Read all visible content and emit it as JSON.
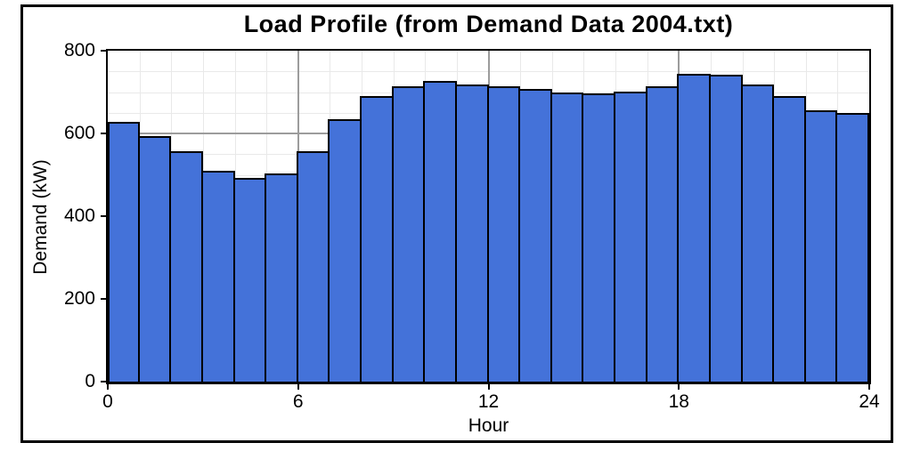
{
  "chart_data": {
    "type": "bar",
    "title": "Load Profile (from Demand Data 2004.txt)",
    "xlabel": "Hour",
    "ylabel": "Demand (kW)",
    "hours": [
      0,
      1,
      2,
      3,
      4,
      5,
      6,
      7,
      8,
      9,
      10,
      11,
      12,
      13,
      14,
      15,
      16,
      17,
      18,
      19,
      20,
      21,
      22,
      23
    ],
    "values": [
      628,
      593,
      558,
      510,
      493,
      504,
      558,
      635,
      690,
      715,
      726,
      719,
      714,
      708,
      700,
      696,
      701,
      713,
      744,
      742,
      718,
      690,
      655,
      650
    ],
    "xlim": [
      0,
      24
    ],
    "ylim": [
      0,
      800
    ],
    "x_major_ticks": [
      0,
      6,
      12,
      18,
      24
    ],
    "y_major_ticks": [
      0,
      200,
      400,
      600,
      800
    ],
    "x_minor_step_hours": 1,
    "y_minor_step_kw": 50,
    "grid": "minor and major gridlines on",
    "legend": "none",
    "colors": {
      "bar_fill": "#4472D9",
      "bar_border": "#000000",
      "grid_minor": "#E9E9E9",
      "grid_major": "#9C9C9C",
      "axis": "#000000",
      "background": "#FFFFFF",
      "text": "#000000"
    }
  }
}
